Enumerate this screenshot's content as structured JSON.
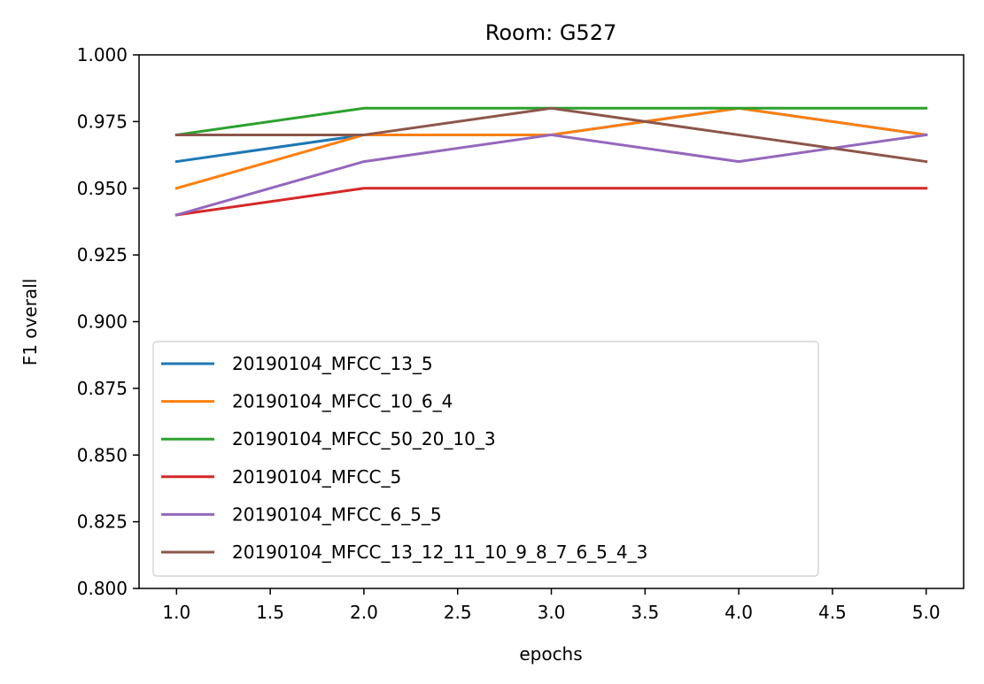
{
  "chart_data": {
    "type": "line",
    "title": "Room: G527",
    "xlabel": "epochs",
    "ylabel": "F1 overall",
    "xlim": [
      0.8,
      5.2
    ],
    "ylim": [
      0.8,
      1.0
    ],
    "xticks": [
      1.0,
      1.5,
      2.0,
      2.5,
      3.0,
      3.5,
      4.0,
      4.5,
      5.0
    ],
    "xtick_labels": [
      "1.0",
      "1.5",
      "2.0",
      "2.5",
      "3.0",
      "3.5",
      "4.0",
      "4.5",
      "5.0"
    ],
    "yticks": [
      0.8,
      0.825,
      0.85,
      0.875,
      0.9,
      0.925,
      0.95,
      0.975,
      1.0
    ],
    "ytick_labels": [
      "0.800",
      "0.825",
      "0.850",
      "0.875",
      "0.900",
      "0.925",
      "0.950",
      "0.975",
      "1.000"
    ],
    "grid": false,
    "legend_position": "lower-left",
    "x": [
      1,
      2,
      3,
      4,
      5
    ],
    "series": [
      {
        "name": "20190104_MFCC_13_5",
        "color": "#1f77b4",
        "values": [
          0.96,
          0.97,
          0.97,
          0.98,
          0.97
        ]
      },
      {
        "name": "20190104_MFCC_10_6_4",
        "color": "#ff7f0e",
        "values": [
          0.95,
          0.97,
          0.97,
          0.98,
          0.97
        ]
      },
      {
        "name": "20190104_MFCC_50_20_10_3",
        "color": "#2ca02c",
        "values": [
          0.97,
          0.98,
          0.98,
          0.98,
          0.98
        ]
      },
      {
        "name": "20190104_MFCC_5",
        "color": "#d62728",
        "values": [
          0.94,
          0.95,
          0.95,
          0.95,
          0.95
        ]
      },
      {
        "name": "20190104_MFCC_6_5_5",
        "color": "#9467bd",
        "values": [
          0.94,
          0.96,
          0.97,
          0.96,
          0.97
        ]
      },
      {
        "name": "20190104_MFCC_13_12_11_10_9_8_7_6_5_4_3",
        "color": "#8c564b",
        "values": [
          0.97,
          0.97,
          0.98,
          0.97,
          0.96
        ]
      }
    ]
  }
}
